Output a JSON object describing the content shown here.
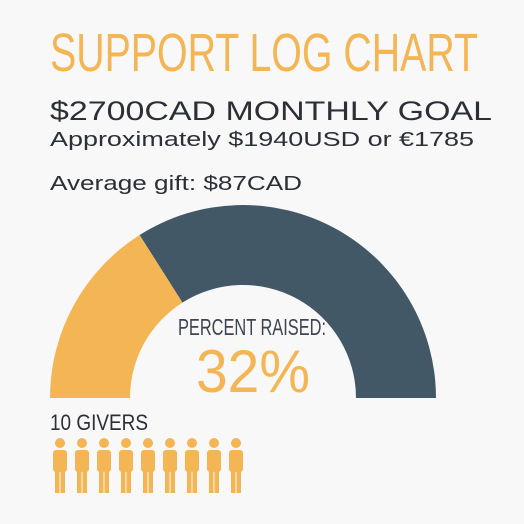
{
  "chart_data": {
    "type": "gauge",
    "title": "SUPPORT LOG CHART",
    "subtitle": "$2700CAD MONTHLY GOAL",
    "annotations": [
      "Approximately $1940USD or €1785",
      "Average gift: $87CAD",
      "10 GIVERS"
    ],
    "label": "PERCENT RAISED:",
    "values": [
      32
    ],
    "value_labels": [
      "32%"
    ],
    "ylim": [
      0,
      100
    ],
    "color": "#f4b654",
    "track_color": "#435867"
  }
}
